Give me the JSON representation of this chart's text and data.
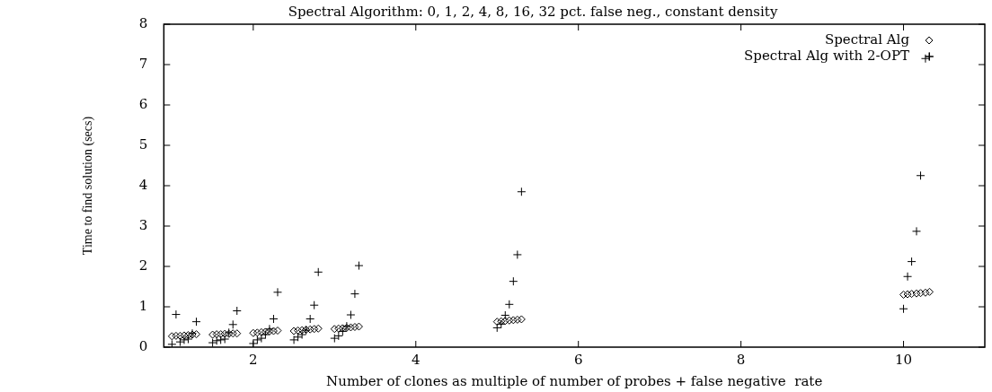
{
  "chart_data": {
    "type": "scatter",
    "title": "Spectral Algorithm: 0, 1, 2, 4, 8, 16, 32 pct. false neg., constant density",
    "xlabel": "Number of clones as multiple of number of probes + false negative  rate",
    "ylabel": "Time to find solution (secs)",
    "x": [
      1,
      1.05,
      1.1,
      1.15,
      1.2,
      1.25,
      1.3,
      1.5,
      1.55,
      1.6,
      1.65,
      1.7,
      1.75,
      1.8,
      2,
      2.05,
      2.1,
      2.15,
      2.2,
      2.25,
      2.3,
      2.5,
      2.55,
      2.6,
      2.65,
      2.7,
      2.75,
      2.8,
      3,
      3.05,
      3.1,
      3.15,
      3.2,
      3.25,
      3.3,
      5,
      5.05,
      5.1,
      5.15,
      5.2,
      5.25,
      5.3,
      10,
      10.05,
      10.1,
      10.16,
      10.21,
      10.27,
      10.32
    ],
    "series": [
      {
        "name": "Spectral Alg",
        "color": "#000000",
        "marker": "diamond",
        "values": [
          0.27,
          0.28,
          0.28,
          0.29,
          0.3,
          0.31,
          0.32,
          0.31,
          0.32,
          0.32,
          0.33,
          0.33,
          0.34,
          0.34,
          0.35,
          0.36,
          0.37,
          0.38,
          0.39,
          0.4,
          0.41,
          0.4,
          0.41,
          0.42,
          0.43,
          0.44,
          0.45,
          0.46,
          0.45,
          0.46,
          0.47,
          0.48,
          0.49,
          0.5,
          0.51,
          0.63,
          0.64,
          0.65,
          0.66,
          0.67,
          0.68,
          0.69,
          1.3,
          1.31,
          1.32,
          1.33,
          1.34,
          1.35,
          1.37
        ]
      },
      {
        "name": "Spectral Alg with 2-OPT",
        "color": "#000000",
        "marker": "cross",
        "values": [
          0.07,
          0.81,
          0.13,
          0.18,
          0.2,
          0.34,
          0.63,
          0.11,
          0.16,
          0.18,
          0.2,
          0.36,
          0.56,
          0.9,
          0.09,
          0.18,
          0.22,
          0.31,
          0.45,
          0.7,
          1.36,
          0.18,
          0.25,
          0.31,
          0.42,
          0.7,
          1.04,
          1.86,
          0.22,
          0.28,
          0.39,
          0.52,
          0.8,
          1.32,
          2.02,
          0.48,
          0.57,
          0.79,
          1.06,
          1.63,
          2.29,
          3.85,
          0.95,
          1.75,
          2.12,
          2.87,
          4.25,
          7.15,
          7.2
        ]
      }
    ],
    "xlim": [
      0.9,
      11
    ],
    "xticks": [
      2,
      4,
      6,
      8,
      10
    ],
    "ylim": [
      0,
      8
    ],
    "yticks": [
      0,
      1,
      2,
      3,
      4,
      5,
      6,
      7,
      8
    ],
    "grid": false,
    "legend": "top right"
  }
}
